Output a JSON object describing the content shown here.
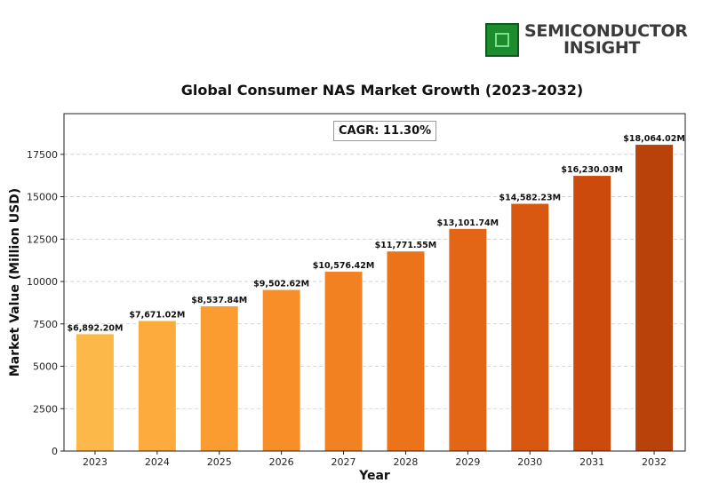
{
  "logo": {
    "line1": "SEMICONDUCTOR",
    "line2": "INSIGHT",
    "icon": "chip-icon"
  },
  "chart_data": {
    "type": "bar",
    "title": "Global Consumer NAS Market Growth (2023-2032)",
    "xlabel": "Year",
    "ylabel": "Market Value (Million USD)",
    "annotation": "CAGR: 11.30%",
    "categories": [
      "2023",
      "2024",
      "2025",
      "2026",
      "2027",
      "2028",
      "2029",
      "2030",
      "2031",
      "2032"
    ],
    "values": [
      6892.2,
      7671.02,
      8537.84,
      9502.62,
      10576.42,
      11771.55,
      13101.74,
      14582.23,
      16230.03,
      18064.02
    ],
    "data_labels": [
      "$6,892.20M",
      "$7,671.02M",
      "$8,537.84M",
      "$9,502.62M",
      "$10,576.42M",
      "$11,771.55M",
      "$13,101.74M",
      "$14,582.23M",
      "$16,230.03M",
      "$18,064.02M"
    ],
    "ylim": [
      0,
      19900
    ],
    "yticks": [
      0,
      2500,
      5000,
      7500,
      10000,
      12500,
      15000,
      17500
    ],
    "grid": true,
    "colors": [
      "#fdb84a",
      "#fcab3c",
      "#fa9c30",
      "#f78e27",
      "#f28121",
      "#ec731a",
      "#e26615",
      "#d85811",
      "#cb4a0c",
      "#b9410a"
    ]
  }
}
